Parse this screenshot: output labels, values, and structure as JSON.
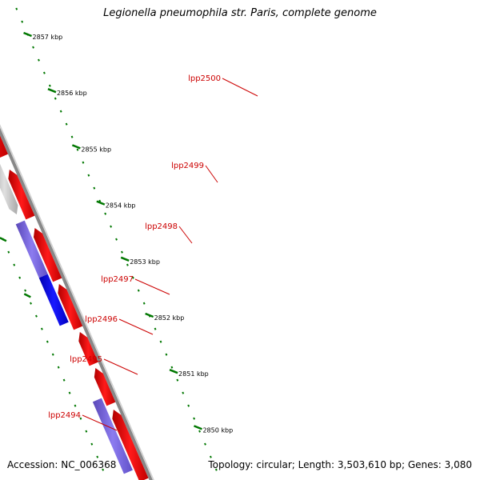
{
  "title": "Legionella pneumophila str. Paris, complete genome",
  "footer": {
    "accession": "Accession: NC_006368",
    "summary": "Topology: circular; Length: 3,503,610 bp; Genes: 3,080"
  },
  "colors": {
    "forward_strand": "#ff0000",
    "reverse_strand_blue": "#0000ff",
    "reverse_strand_lilac": "#7b68e0",
    "reverse_strand_grey": "#c0c0c0",
    "dark_feature": "#555555",
    "backbone": "#888888",
    "tick": "#007700",
    "gene_label": "#cc0000"
  },
  "scale": {
    "unit": "kbp",
    "ticks": [
      {
        "label": "2857 kbp",
        "kbp": 2857
      },
      {
        "label": "2856 kbp",
        "kbp": 2856
      },
      {
        "label": "2855 kbp",
        "kbp": 2855
      },
      {
        "label": "2854 kbp",
        "kbp": 2854
      },
      {
        "label": "2853 kbp",
        "kbp": 2853
      },
      {
        "label": "2852 kbp",
        "kbp": 2852
      },
      {
        "label": "2851 kbp",
        "kbp": 2851
      },
      {
        "label": "2850 kbp",
        "kbp": 2850
      }
    ]
  },
  "genes": [
    {
      "label": "lpp2500",
      "strand": "forward",
      "color": "red"
    },
    {
      "label": "lpp2499",
      "strand": "reverse",
      "color": "grey"
    },
    {
      "label": "lpp2498",
      "strand": "reverse",
      "color": "lilac"
    },
    {
      "label": "lpp2497",
      "strand": "reverse",
      "color": "blue"
    },
    {
      "label": "lpp2496",
      "strand": "forward",
      "color": "red"
    },
    {
      "label": "lpp2495",
      "strand": "forward",
      "color": "red"
    },
    {
      "label": "lpp2494",
      "strand": "reverse",
      "color": "lilac"
    }
  ]
}
